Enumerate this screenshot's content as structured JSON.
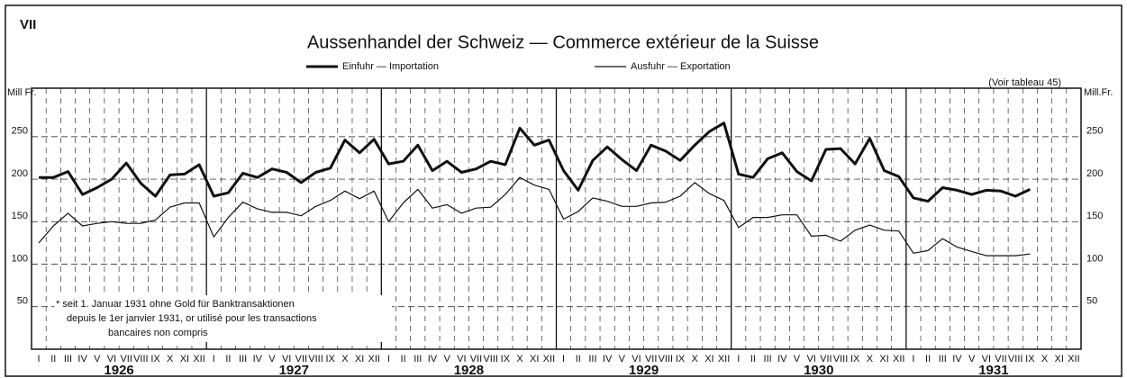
{
  "chart_data": {
    "type": "line",
    "figure_label": "VII",
    "title": "Aussenhandel der Schweiz — Commerce extérieur de la Suisse",
    "note": "(Voir tableau 45)",
    "y_label_left": "Mill Fr.",
    "y_label_right": "Mill.Fr.",
    "footnote": [
      "* seit 1. Januar 1931 ohne Gold für Banktransaktionen",
      "depuis le 1er janvier 1931, or utilisé pour les transactions",
      "bancaires non compris"
    ],
    "years": [
      "1926",
      "1927",
      "1928",
      "1929",
      "1930",
      "1931"
    ],
    "categories": [
      "I",
      "II",
      "III",
      "IV",
      "V",
      "VI",
      "VII",
      "VIII",
      "IX",
      "X",
      "XI",
      "XII",
      "I",
      "II",
      "III",
      "IV",
      "V",
      "VI",
      "VII",
      "VIII",
      "IX",
      "X",
      "XI",
      "XII",
      "I",
      "II",
      "III",
      "IV",
      "V",
      "VI",
      "VII",
      "VIII",
      "IX",
      "X",
      "XI",
      "XII",
      "I",
      "II",
      "III",
      "IV",
      "V",
      "VI",
      "VII",
      "VIII",
      "IX",
      "X",
      "XI",
      "XII",
      "I",
      "II",
      "III",
      "IV",
      "V",
      "VI",
      "VII",
      "VIII",
      "IX",
      "X",
      "XI",
      "XII",
      "I",
      "II",
      "III",
      "IV",
      "V",
      "VI",
      "VII",
      "VIII",
      "IX",
      "X",
      "XI",
      "XII"
    ],
    "series": [
      {
        "name": "Einfuhr — Importation",
        "color": "#111111",
        "line_width": 3,
        "values": [
          202,
          202,
          209,
          182,
          190,
          200,
          219,
          195,
          180,
          205,
          206,
          217,
          180,
          184,
          207,
          202,
          212,
          208,
          196,
          208,
          213,
          246,
          231,
          247,
          218,
          221,
          240,
          210,
          221,
          208,
          212,
          221,
          217,
          260,
          240,
          246,
          210,
          187,
          222,
          238,
          223,
          210,
          240,
          233,
          222,
          240,
          256,
          266,
          206,
          202,
          224,
          231,
          209,
          198,
          235,
          236,
          218,
          248,
          210,
          203,
          178,
          174,
          190,
          187,
          182,
          187,
          186,
          180,
          188,
          null,
          null,
          null
        ]
      },
      {
        "name": "Ausfuhr — Exportation",
        "color": "#111111",
        "line_width": 1.2,
        "values": [
          125,
          145,
          160,
          145,
          148,
          150,
          148,
          148,
          152,
          167,
          172,
          172,
          132,
          155,
          173,
          165,
          161,
          161,
          157,
          168,
          175,
          186,
          177,
          186,
          150,
          172,
          188,
          166,
          170,
          160,
          166,
          167,
          182,
          202,
          193,
          188,
          153,
          162,
          178,
          174,
          168,
          168,
          172,
          173,
          180,
          196,
          183,
          175,
          143,
          155,
          155,
          158,
          158,
          133,
          134,
          127,
          140,
          146,
          140,
          139,
          113,
          116,
          130,
          120,
          115,
          110,
          110,
          110,
          112,
          null,
          null,
          null
        ]
      }
    ],
    "ylim": [
      0,
      307
    ],
    "yticks": [
      50,
      100,
      150,
      200,
      250
    ],
    "grid": true
  }
}
